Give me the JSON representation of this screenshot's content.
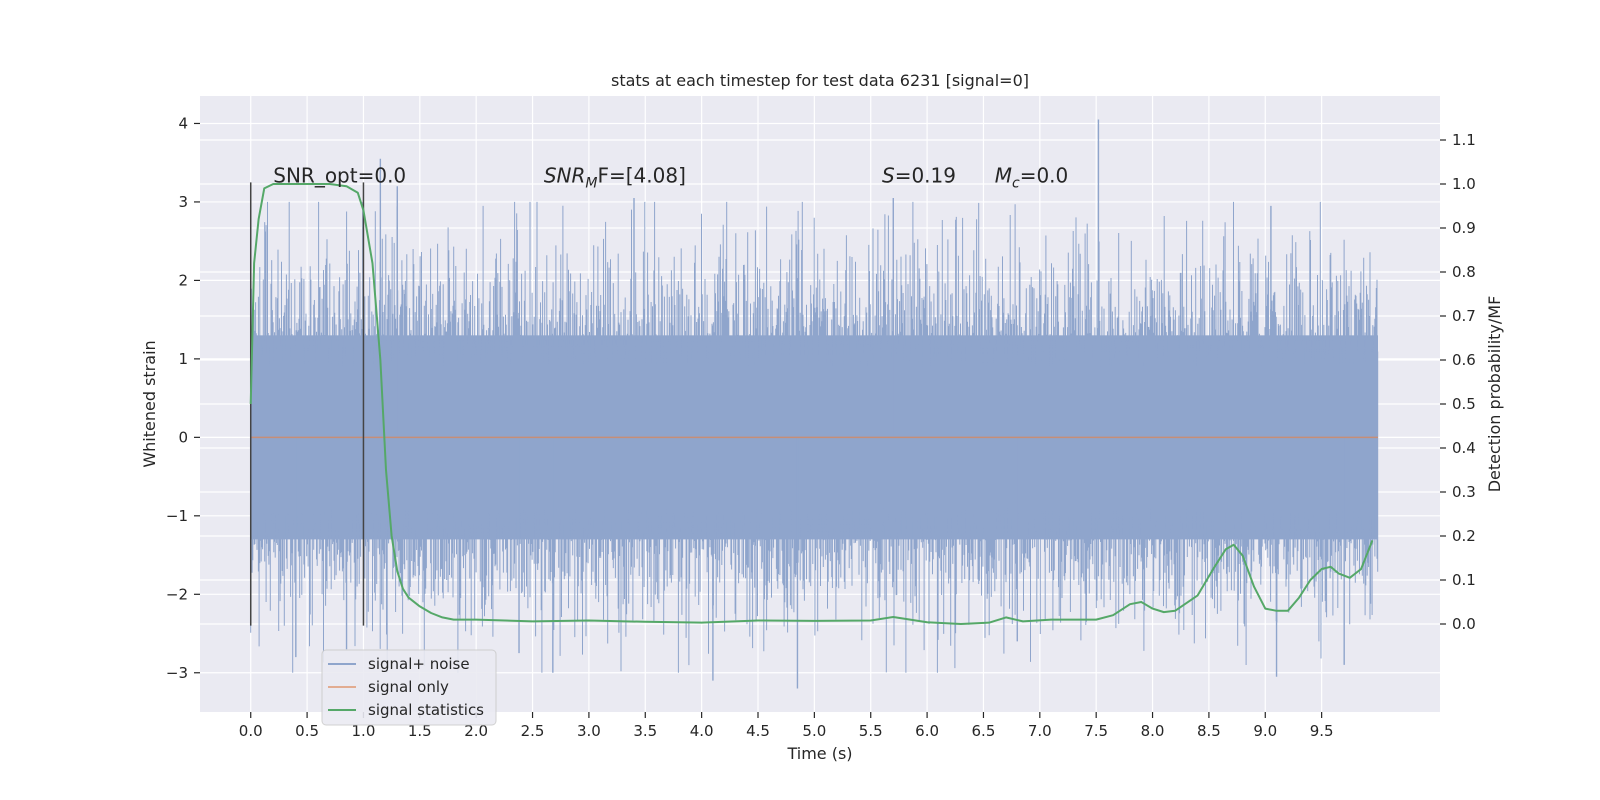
{
  "chart_data": {
    "type": "line",
    "title": "stats at each timestep for test data 6231 [signal=0]",
    "xlabel": "Time (s)",
    "ylabel_left": "Whitened strain",
    "ylabel_right": "Detection probability/MF",
    "xlim": [
      -0.45,
      10.55
    ],
    "ylim_left": [
      -3.5,
      4.35
    ],
    "ylim_right": [
      -0.2,
      1.2
    ],
    "x_ticks": [
      0.0,
      0.5,
      1.0,
      1.5,
      2.0,
      2.5,
      3.0,
      3.5,
      4.0,
      4.5,
      5.0,
      5.5,
      6.0,
      6.5,
      7.0,
      7.5,
      8.0,
      8.5,
      9.0,
      9.5
    ],
    "x_tick_labels": [
      "0.0",
      "0.5",
      "1.0",
      "1.5",
      "2.0",
      "2.5",
      "3.0",
      "3.5",
      "4.0",
      "4.5",
      "5.0",
      "5.5",
      "6.0",
      "6.5",
      "7.0",
      "7.5",
      "8.0",
      "8.5",
      "9.0",
      "9.5"
    ],
    "y_left_ticks": [
      -3,
      -2,
      -1,
      0,
      1,
      2,
      3,
      4
    ],
    "y_left_tick_labels": [
      "−3",
      "−2",
      "−1",
      "0",
      "1",
      "2",
      "3",
      "4"
    ],
    "y_right_ticks": [
      0.0,
      0.1,
      0.2,
      0.3,
      0.4,
      0.5,
      0.6,
      0.7,
      0.8,
      0.9,
      1.0,
      1.1
    ],
    "y_right_tick_labels": [
      "0.0",
      "0.1",
      "0.2",
      "0.3",
      "0.4",
      "0.5",
      "0.6",
      "0.7",
      "0.8",
      "0.9",
      "1.0",
      "1.1"
    ],
    "grid": true,
    "legend_position": "lower-left",
    "series": [
      {
        "name": "signal+ noise",
        "axis": "left",
        "color": "#8fa5cc",
        "kind": "noise",
        "x_range": [
          0.0,
          10.0
        ],
        "core_band": [
          -1.3,
          1.3
        ],
        "spike_peaks": [
          {
            "x": 0.0,
            "y": 1.9
          },
          {
            "x": 0.0,
            "y": -2.4
          },
          {
            "x": 1.15,
            "y": 3.55
          },
          {
            "x": 1.3,
            "y": 3.2
          },
          {
            "x": 0.4,
            "y": -2.8
          },
          {
            "x": 0.85,
            "y": -2.7
          },
          {
            "x": 2.38,
            "y": -2.75
          },
          {
            "x": 2.68,
            "y": -3.0
          },
          {
            "x": 3.4,
            "y": 3.05
          },
          {
            "x": 4.1,
            "y": -3.1
          },
          {
            "x": 4.85,
            "y": -3.2
          },
          {
            "x": 5.7,
            "y": 3.05
          },
          {
            "x": 6.8,
            "y": -2.6
          },
          {
            "x": 7.52,
            "y": 4.05
          },
          {
            "x": 9.05,
            "y": 2.95
          },
          {
            "x": 9.1,
            "y": -3.05
          },
          {
            "x": 9.7,
            "y": -2.9
          }
        ]
      },
      {
        "name": "signal only",
        "axis": "left",
        "color": "#dd8452",
        "kind": "line",
        "x": [
          0.0,
          10.0
        ],
        "y": [
          0.0,
          0.0
        ]
      },
      {
        "name": "signal statistics",
        "axis": "right",
        "color": "#55a868",
        "kind": "line",
        "x": [
          0.0,
          0.03,
          0.07,
          0.12,
          0.2,
          0.3,
          0.5,
          0.7,
          0.85,
          0.95,
          1.0,
          1.08,
          1.15,
          1.2,
          1.25,
          1.3,
          1.35,
          1.4,
          1.5,
          1.6,
          1.7,
          1.8,
          2.0,
          2.5,
          3.0,
          3.5,
          4.0,
          4.5,
          5.0,
          5.5,
          5.7,
          6.0,
          6.3,
          6.55,
          6.7,
          6.85,
          7.1,
          7.5,
          7.65,
          7.8,
          7.9,
          8.0,
          8.1,
          8.2,
          8.4,
          8.55,
          8.65,
          8.72,
          8.8,
          8.9,
          9.0,
          9.1,
          9.2,
          9.3,
          9.4,
          9.5,
          9.58,
          9.65,
          9.75,
          9.85,
          9.95
        ],
        "y": [
          0.5,
          0.82,
          0.92,
          0.99,
          1.0,
          1.0,
          1.0,
          1.0,
          0.995,
          0.98,
          0.94,
          0.82,
          0.6,
          0.35,
          0.2,
          0.12,
          0.08,
          0.06,
          0.04,
          0.025,
          0.015,
          0.01,
          0.01,
          0.006,
          0.008,
          0.005,
          0.003,
          0.008,
          0.007,
          0.008,
          0.016,
          0.004,
          0.0,
          0.003,
          0.015,
          0.006,
          0.01,
          0.01,
          0.02,
          0.045,
          0.05,
          0.035,
          0.027,
          0.03,
          0.065,
          0.13,
          0.17,
          0.18,
          0.155,
          0.085,
          0.035,
          0.03,
          0.03,
          0.06,
          0.1,
          0.125,
          0.13,
          0.115,
          0.105,
          0.125,
          0.19
        ]
      }
    ],
    "vlines": [
      {
        "x": 0.0,
        "y": [
          -2.4,
          3.25
        ],
        "color": "#444444"
      },
      {
        "x": 1.0,
        "y": [
          -2.4,
          3.25
        ],
        "color": "#444444"
      }
    ],
    "annotations": [
      {
        "text": "SNR_opt=0.0",
        "x": 0.2,
        "y": 3.25
      },
      {
        "math_main": "SNR",
        "math_sub": "M",
        "rest": "F=[4.08]",
        "x": 2.6,
        "y": 3.25
      },
      {
        "math_main": "S",
        "math_sub": "",
        "rest": "=0.19",
        "x": 5.6,
        "y": 3.25
      },
      {
        "math_main": "M",
        "math_sub": "c",
        "rest": "=0.0",
        "x": 6.6,
        "y": 3.25
      }
    ]
  }
}
